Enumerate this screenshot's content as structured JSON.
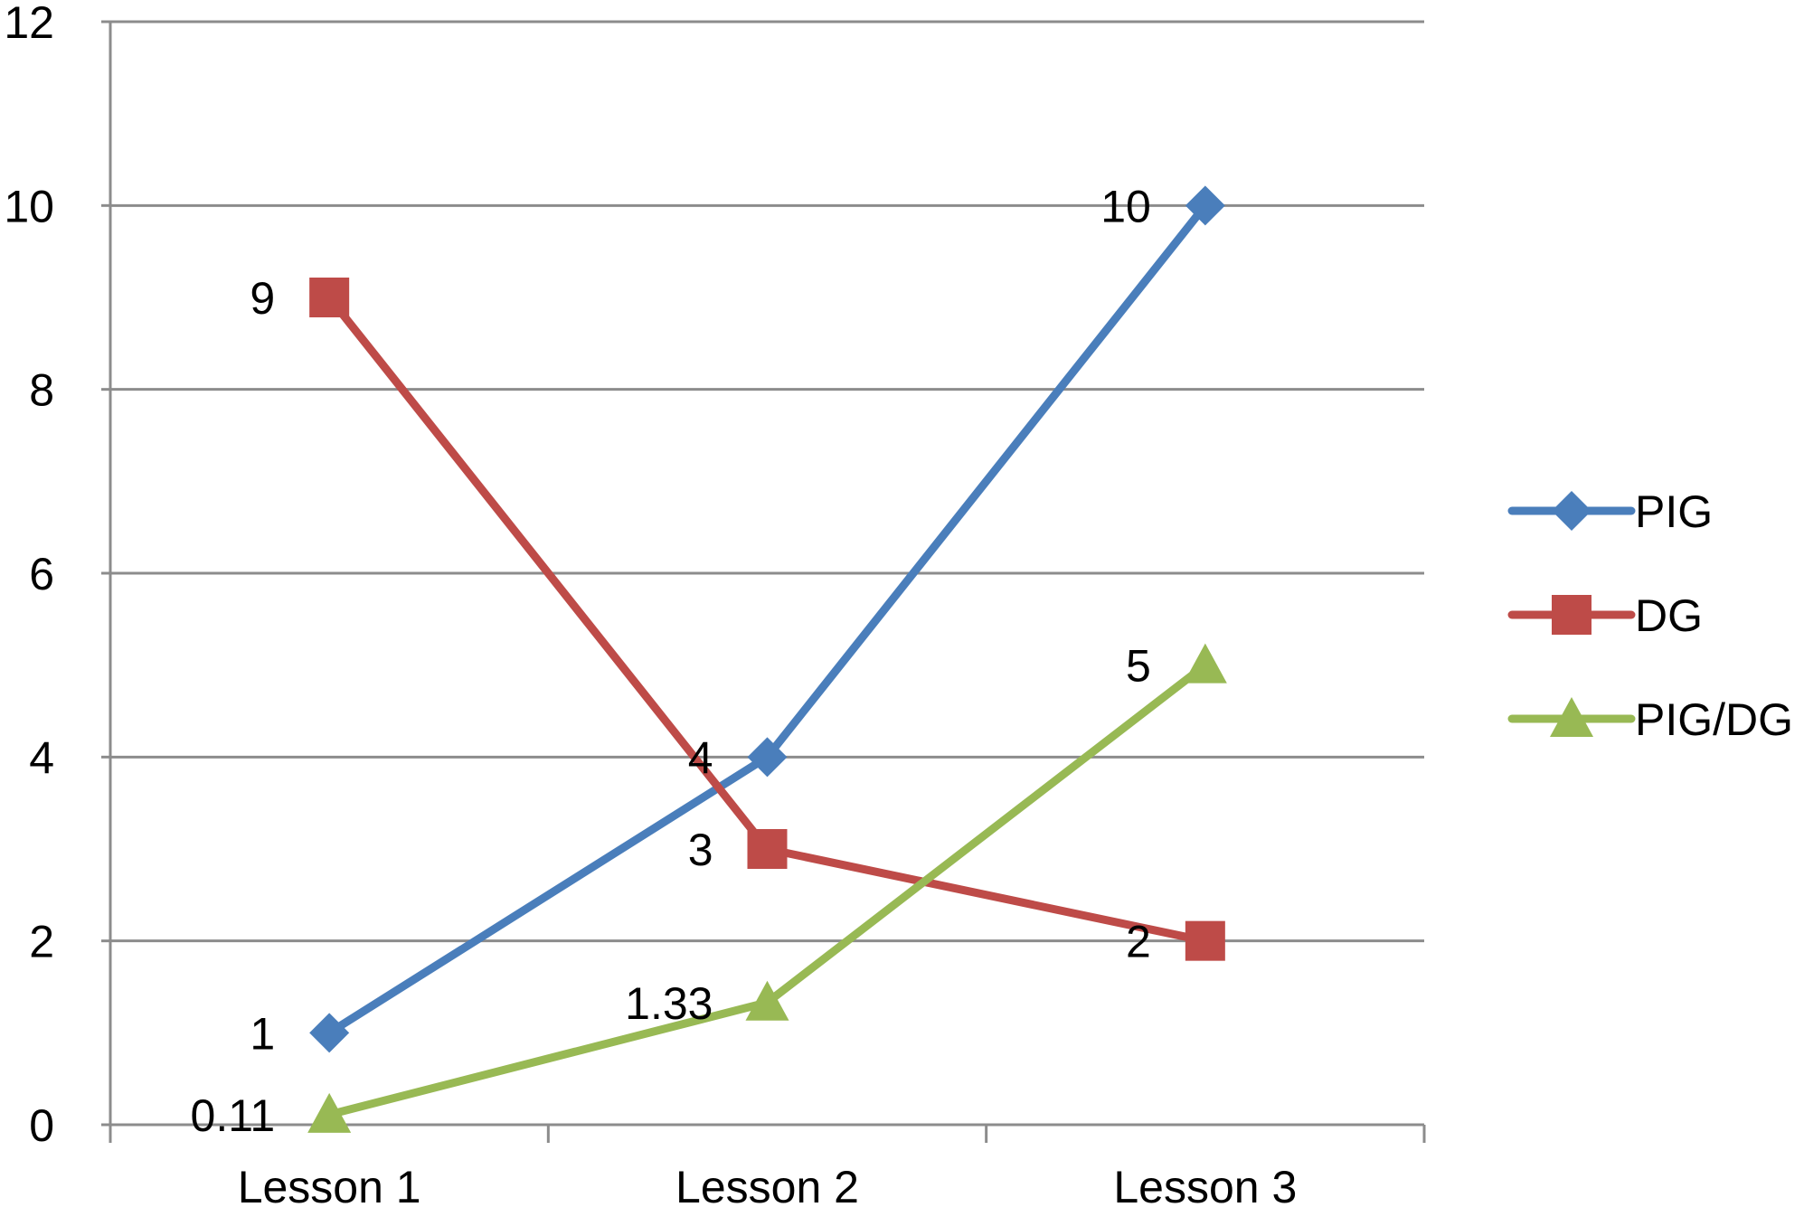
{
  "chart_data": {
    "type": "line",
    "title": "",
    "xlabel": "",
    "ylabel": "",
    "categories": [
      "Lesson 1",
      "Lesson 2",
      "Lesson 3"
    ],
    "y_ticks": [
      "0",
      "2",
      "4",
      "6",
      "8",
      "10",
      "12"
    ],
    "ylim": [
      0,
      12
    ],
    "grid": true,
    "legend_position": "right",
    "series": [
      {
        "name": "PIG",
        "values": [
          1,
          4,
          10
        ],
        "data_labels": [
          "1",
          "4",
          "10"
        ],
        "color": "#4a7ebb",
        "marker": "diamond"
      },
      {
        "name": "DG",
        "values": [
          9,
          3,
          2
        ],
        "data_labels": [
          "9",
          "3",
          "2"
        ],
        "color": "#be4b48",
        "marker": "square"
      },
      {
        "name": "PIG/DG",
        "values": [
          0.11,
          1.33,
          5
        ],
        "data_labels": [
          "0.11",
          "1.33",
          "5"
        ],
        "color": "#98b954",
        "marker": "triangle"
      }
    ]
  }
}
